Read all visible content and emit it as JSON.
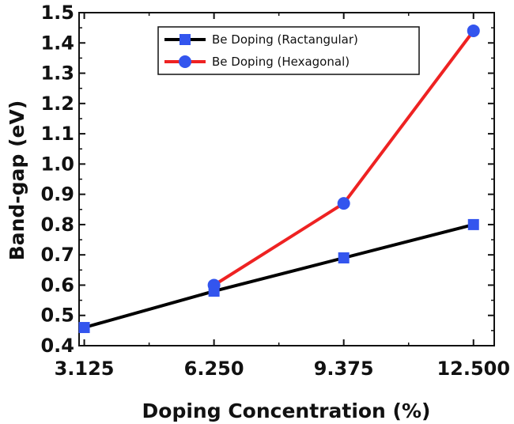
{
  "chart_data": {
    "type": "line",
    "xlabel": "Doping Concentration (%)",
    "ylabel": "Band-gap (eV)",
    "x": [
      3.125,
      6.25,
      9.375,
      12.5
    ],
    "x_tick_labels": [
      "3.125",
      "6.250",
      "9.375",
      "12.500"
    ],
    "xlim": [
      3.0,
      13.0
    ],
    "ylim": [
      0.4,
      1.5
    ],
    "y_ticks": [
      0.4,
      0.5,
      0.6,
      0.7,
      0.8,
      0.9,
      1.0,
      1.1,
      1.2,
      1.3,
      1.4,
      1.5
    ],
    "y_tick_labels": [
      "0.4",
      "0.5",
      "0.6",
      "0.7",
      "0.8",
      "0.9",
      "1.0",
      "1.1",
      "1.2",
      "1.3",
      "1.4",
      "1.5"
    ],
    "grid": false,
    "legend_position": "top-right",
    "series": [
      {
        "name": "Be Doping (Ractangular)",
        "x": [
          3.125,
          6.25,
          9.375,
          12.5
        ],
        "values": [
          0.46,
          0.58,
          0.69,
          0.8
        ],
        "line_color": "#000000",
        "marker": "square",
        "marker_color": "#3355ee"
      },
      {
        "name": "Be Doping (Hexagonal)",
        "x": [
          6.25,
          9.375,
          12.5
        ],
        "values": [
          0.6,
          0.87,
          1.44
        ],
        "line_color": "#ee2222",
        "marker": "circle",
        "marker_color": "#3355ee"
      }
    ]
  }
}
